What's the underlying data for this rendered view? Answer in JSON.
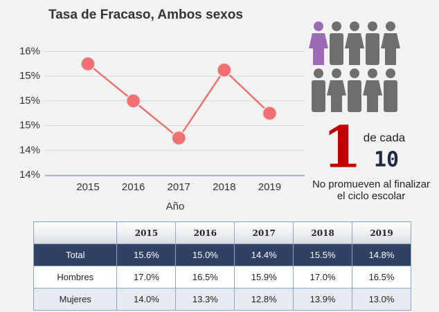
{
  "chart_data": {
    "type": "line",
    "title": "Tasa de Fracaso, Ambos sexos",
    "x_label": "Año",
    "categories": [
      "2015",
      "2016",
      "2017",
      "2018",
      "2019"
    ],
    "series": [
      {
        "name": "Total",
        "color": "#f07070",
        "values": [
          15.6,
          15.0,
          14.4,
          15.5,
          14.8
        ]
      }
    ],
    "ylim": [
      13.8,
      15.85
    ],
    "yticks": [
      {
        "value": 13.8,
        "label": "14%"
      },
      {
        "value": 14.2,
        "label": "14%"
      },
      {
        "value": 14.6,
        "label": "15%"
      },
      {
        "value": 15.0,
        "label": "15%"
      },
      {
        "value": 15.4,
        "label": "15%"
      },
      {
        "value": 15.8,
        "label": "16%"
      }
    ],
    "grid": true,
    "legend": false
  },
  "infographic": {
    "number": "1",
    "of_each": "de cada",
    "total": "10",
    "caption": "No promueven al finalizar el ciclo escolar"
  },
  "table": {
    "header": [
      "2015",
      "2016",
      "2017",
      "2018",
      "2019"
    ],
    "rows": [
      [
        "Total",
        "15.6%",
        "15.0%",
        "14.4%",
        "15.5%",
        "14.8%"
      ],
      [
        "Hombres",
        "17.0%",
        "16.5%",
        "15.9%",
        "17.0%",
        "16.5%"
      ],
      [
        "Mujeres",
        "14.0%",
        "13.3%",
        "12.8%",
        "13.9%",
        "13.0%"
      ]
    ]
  }
}
